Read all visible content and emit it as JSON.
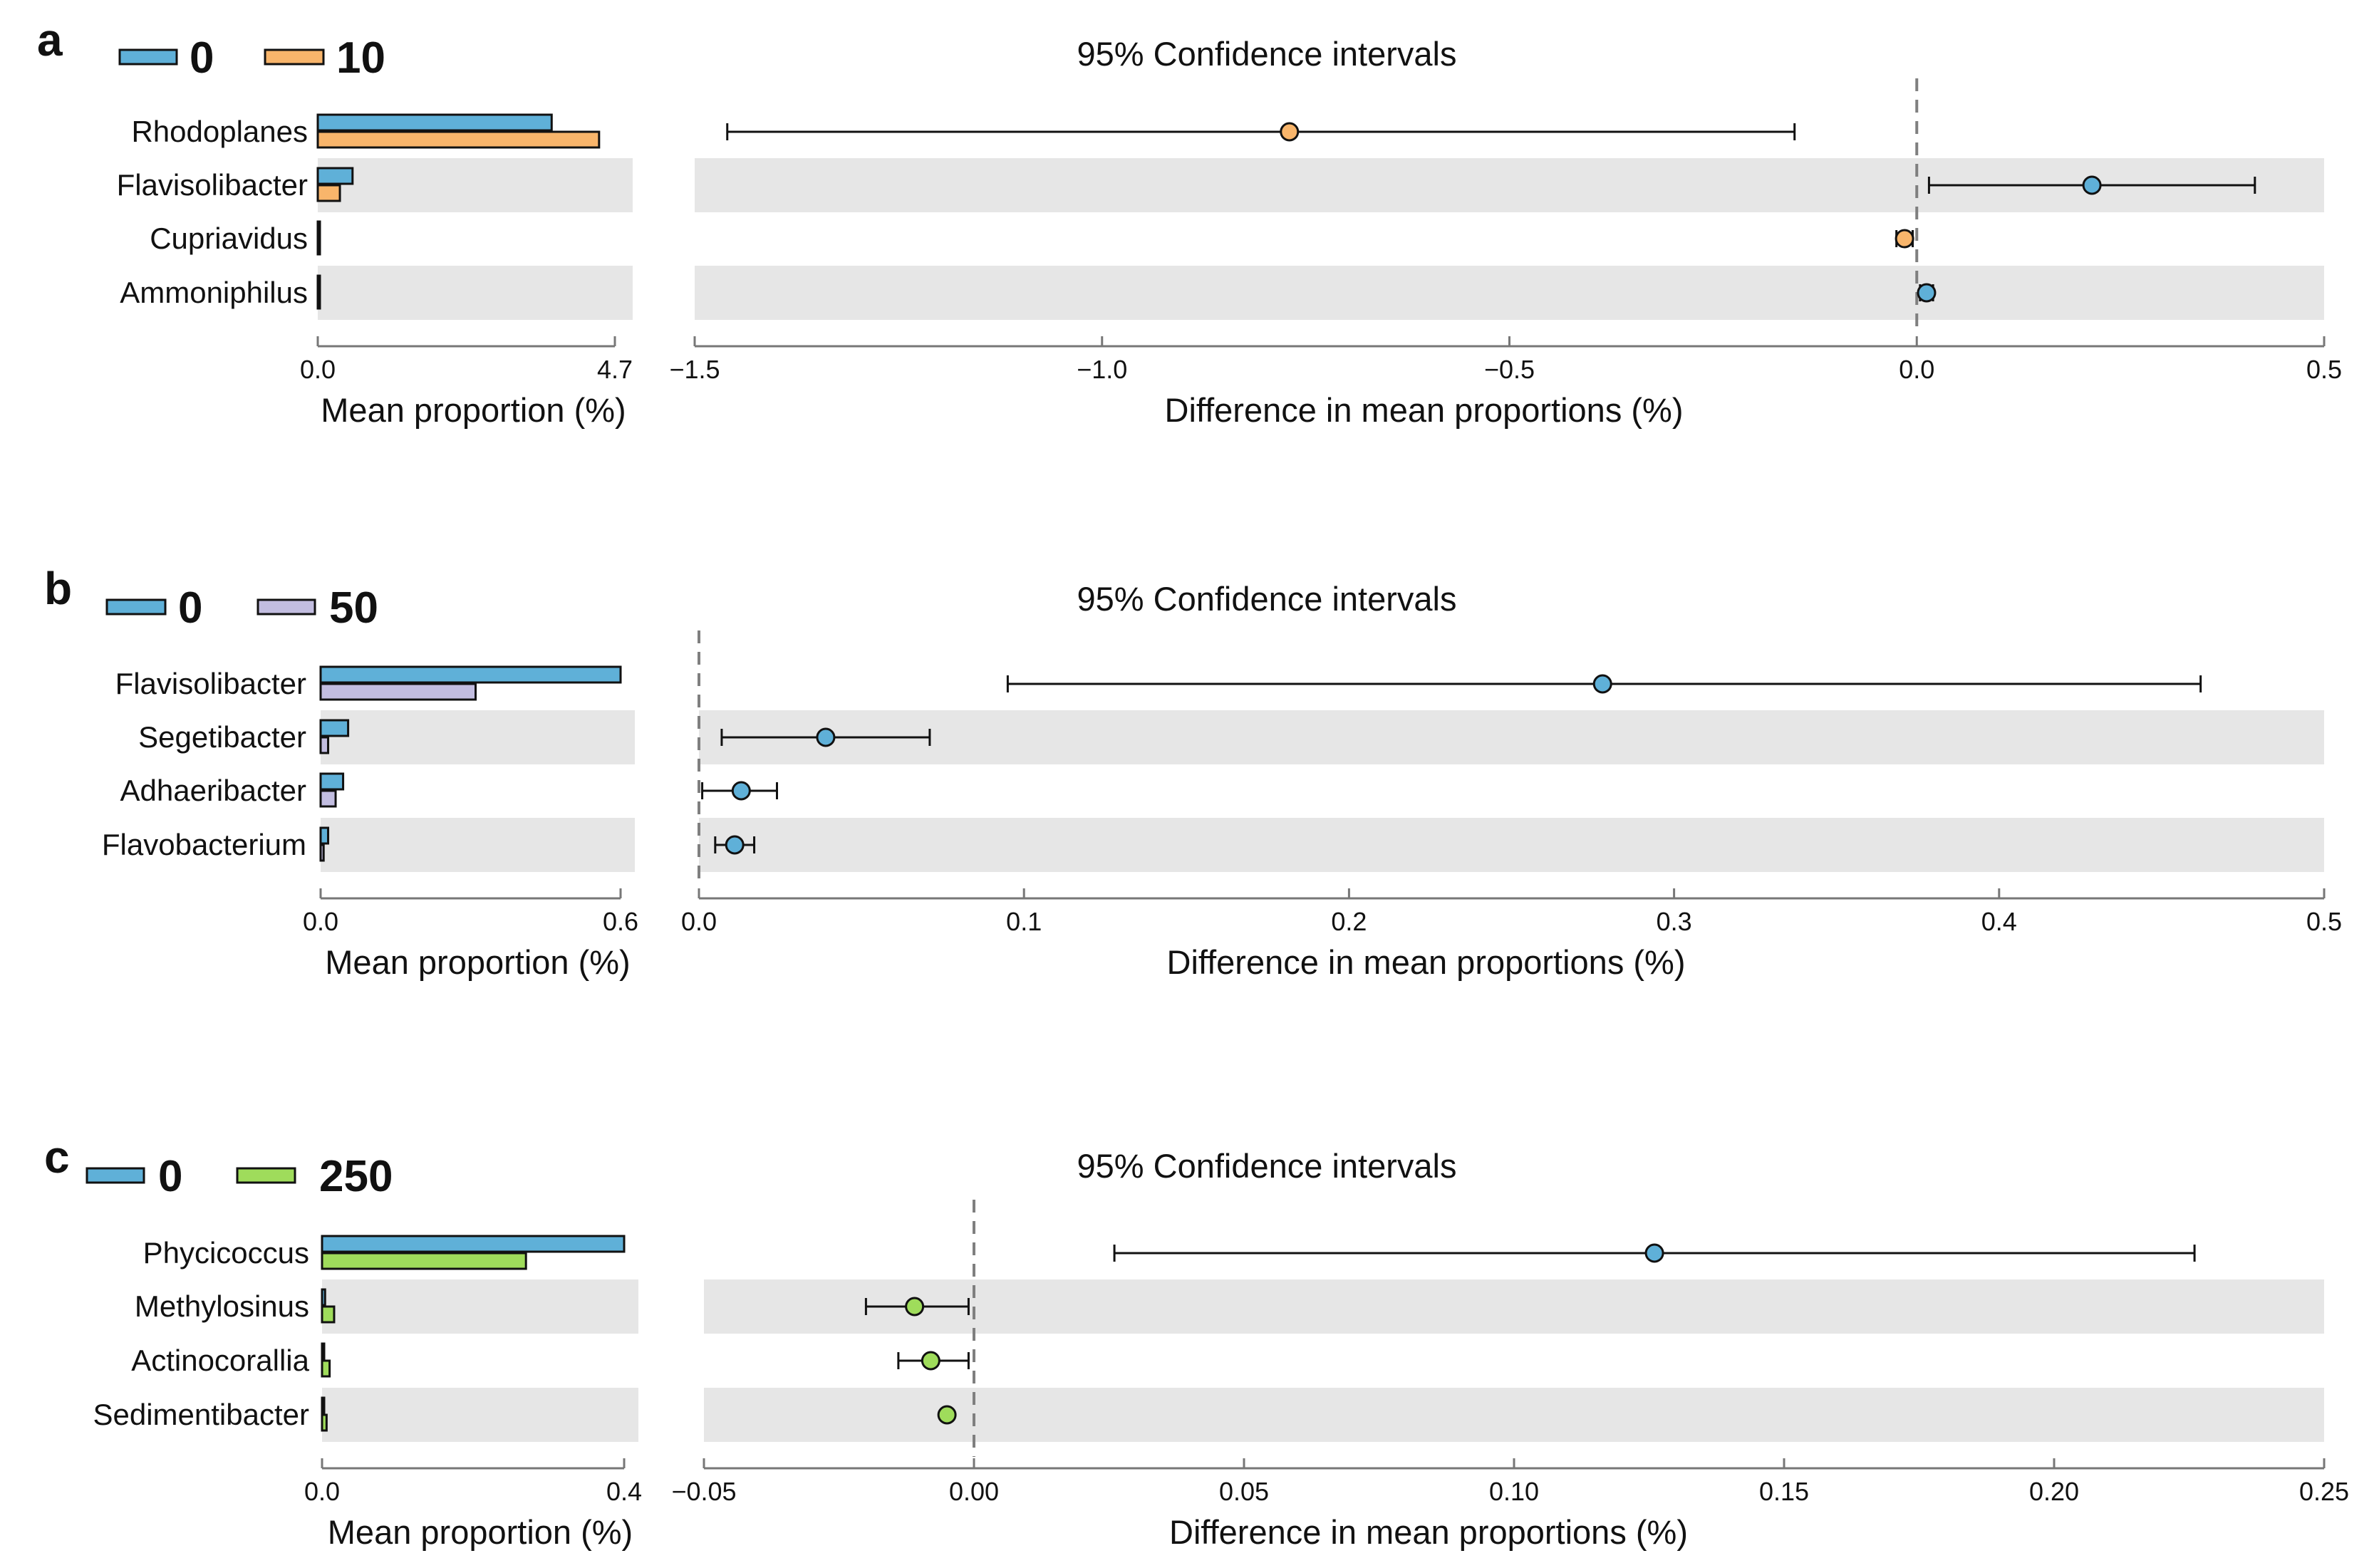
{
  "figure": {
    "common": {
      "ci_title": "95% Confidence intervals",
      "bar_axis_label": "Mean proportion (%)",
      "ci_axis_label": "Difference in mean proportions (%)"
    },
    "colors": {
      "group_0": "#5fb0d8",
      "group_10": "#f8b56b",
      "group_50": "#c2bde0",
      "group_250": "#9fdc5b",
      "band": "#e6e6e6"
    }
  },
  "chart_data": [
    {
      "type": "bar",
      "panel": "a",
      "legend": [
        {
          "name": "0",
          "color": "#5fb0d8"
        },
        {
          "name": "10",
          "color": "#f8b56b"
        }
      ],
      "categories": [
        "Rhodoplanes",
        "Flavisolibacter",
        "Cupriavidus",
        "Ammoniphilus"
      ],
      "series": [
        {
          "name": "0",
          "values": [
            3.7,
            0.55,
            0.02,
            0.02
          ]
        },
        {
          "name": "10",
          "values": [
            4.45,
            0.35,
            0.02,
            0.01
          ]
        }
      ],
      "xlim": [
        0.0,
        4.7
      ],
      "xticks": [
        "0.0",
        "4.7"
      ],
      "xlabel": "Mean proportion (%)",
      "ci": {
        "title": "95% Confidence intervals",
        "xlabel": "Difference in mean proportions (%)",
        "xlim": [
          -1.5,
          0.5
        ],
        "xticks": [
          "−1.5",
          "−1.0",
          "−0.5",
          "0.0",
          "0.5"
        ],
        "tick_values": [
          -1.5,
          -1.0,
          -0.5,
          0.0,
          0.5
        ],
        "zero": 0.0,
        "points": [
          {
            "category": "Rhodoplanes",
            "mean": -0.77,
            "low": -1.46,
            "high": -0.15,
            "group": "10"
          },
          {
            "category": "Flavisolibacter",
            "mean": 0.215,
            "low": 0.015,
            "high": 0.415,
            "group": "0"
          },
          {
            "category": "Cupriavidus",
            "mean": -0.015,
            "low": -0.025,
            "high": -0.005,
            "group": "10"
          },
          {
            "category": "Ammoniphilus",
            "mean": 0.012,
            "low": 0.004,
            "high": 0.02,
            "group": "0"
          }
        ]
      }
    },
    {
      "type": "bar",
      "panel": "b",
      "legend": [
        {
          "name": "0",
          "color": "#5fb0d8"
        },
        {
          "name": "50",
          "color": "#c2bde0"
        }
      ],
      "categories": [
        "Flavisolibacter",
        "Segetibacter",
        "Adhaeribacter",
        "Flavobacterium"
      ],
      "series": [
        {
          "name": "0",
          "values": [
            0.6,
            0.055,
            0.045,
            0.015
          ]
        },
        {
          "name": "50",
          "values": [
            0.31,
            0.015,
            0.03,
            0.006
          ]
        }
      ],
      "xlim": [
        0.0,
        0.6
      ],
      "xticks": [
        "0.0",
        "0.6"
      ],
      "xlabel": "Mean proportion (%)",
      "ci": {
        "title": "95% Confidence intervals",
        "xlabel": "Difference in mean proportions (%)",
        "xlim": [
          0.0,
          0.5
        ],
        "xticks": [
          "0.0",
          "0.1",
          "0.2",
          "0.3",
          "0.4",
          "0.5"
        ],
        "tick_values": [
          0.0,
          0.1,
          0.2,
          0.3,
          0.4,
          0.5
        ],
        "zero": 0.0,
        "points": [
          {
            "category": "Flavisolibacter",
            "mean": 0.278,
            "low": 0.095,
            "high": 0.462,
            "group": "0"
          },
          {
            "category": "Segetibacter",
            "mean": 0.039,
            "low": 0.007,
            "high": 0.071,
            "group": "0"
          },
          {
            "category": "Adhaeribacter",
            "mean": 0.013,
            "low": 0.001,
            "high": 0.024,
            "group": "0"
          },
          {
            "category": "Flavobacterium",
            "mean": 0.011,
            "low": 0.005,
            "high": 0.017,
            "group": "0"
          }
        ]
      }
    },
    {
      "type": "bar",
      "panel": "c",
      "legend": [
        {
          "name": "0",
          "color": "#5fb0d8"
        },
        {
          "name": "250",
          "color": "#9fdc5b"
        }
      ],
      "categories": [
        "Phycicoccus",
        "Methylosinus",
        "Actinocorallia",
        "Sedimentibacter"
      ],
      "series": [
        {
          "name": "0",
          "values": [
            0.4,
            0.004,
            0.002,
            0.002
          ]
        },
        {
          "name": "250",
          "values": [
            0.27,
            0.016,
            0.01,
            0.006
          ]
        }
      ],
      "xlim": [
        0.0,
        0.4
      ],
      "xticks": [
        "0.0",
        "0.4"
      ],
      "xlabel": "Mean proportion (%)",
      "ci": {
        "title": "95% Confidence intervals",
        "xlabel": "Difference in mean proportions (%)",
        "xlim": [
          -0.05,
          0.25
        ],
        "xticks": [
          "−0.05",
          "0.00",
          "0.05",
          "0.10",
          "0.15",
          "0.20",
          "0.25"
        ],
        "tick_values": [
          -0.05,
          0.0,
          0.05,
          0.1,
          0.15,
          0.2,
          0.25
        ],
        "zero": 0.0,
        "points": [
          {
            "category": "Phycicoccus",
            "mean": 0.126,
            "low": 0.026,
            "high": 0.226,
            "group": "0"
          },
          {
            "category": "Methylosinus",
            "mean": -0.011,
            "low": -0.02,
            "high": -0.001,
            "group": "250"
          },
          {
            "category": "Actinocorallia",
            "mean": -0.008,
            "low": -0.014,
            "high": -0.001,
            "group": "250"
          },
          {
            "category": "Sedimentibacter",
            "mean": -0.005,
            "low": -0.005,
            "high": -0.005,
            "group": "250"
          }
        ]
      }
    }
  ]
}
